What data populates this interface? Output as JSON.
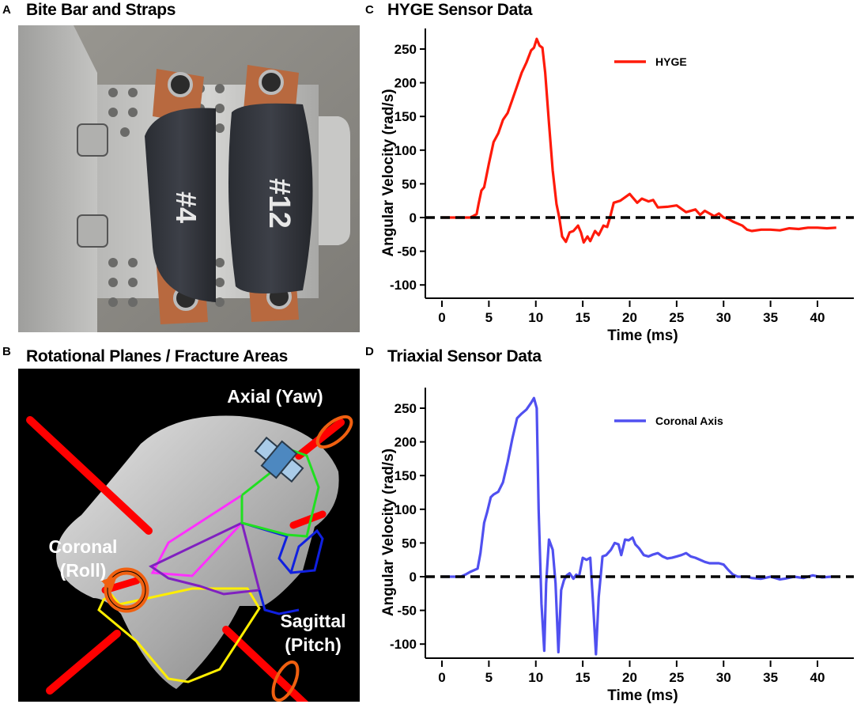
{
  "panels": {
    "A": {
      "letter": "A",
      "title": "Bite Bar and Straps",
      "strap_labels": [
        "#4",
        "#12"
      ]
    },
    "B": {
      "letter": "B",
      "title": "Rotational Planes / Fracture Areas",
      "labels": {
        "axial": "Axial (Yaw)",
        "coronal_1": "Coronal",
        "coronal_2": "(Roll)",
        "sagittal_1": "Sagittal",
        "sagittal_2": "(Pitch)"
      }
    },
    "C": {
      "letter": "C",
      "title": "HYGE Sensor Data"
    },
    "D": {
      "letter": "D",
      "title": "Triaxial Sensor Data"
    }
  },
  "colors": {
    "hyge": "#ff1a0a",
    "coronal": "#5050f0",
    "axis": "#000000",
    "zero_line": "#000000",
    "rod": "#ff0000",
    "ring": "#f06010",
    "yellow": "#ffee00",
    "magenta": "#ff30ff",
    "purple": "#8020c0",
    "blue": "#1020e0",
    "green": "#20e020"
  },
  "chart_data": [
    {
      "type": "line",
      "title": "HYGE Sensor Data",
      "xlabel": "Time (ms)",
      "ylabel": "Angular Velocity (rad/s)",
      "xlim": [
        -0.5,
        42
      ],
      "ylim": [
        -120,
        275
      ],
      "xticks": [
        0,
        5,
        10,
        15,
        20,
        25,
        30,
        35,
        40
      ],
      "yticks": [
        250,
        200,
        150,
        100,
        50,
        0,
        -50,
        -100
      ],
      "grid": false,
      "legend_position": "upper right",
      "reference_line": {
        "y": 0,
        "style": "dashed"
      },
      "series": [
        {
          "name": "HYGE",
          "x": [
            0,
            1,
            2,
            3,
            3.3,
            3.7,
            3.9,
            4.2,
            4.5,
            5,
            5.5,
            6,
            6.5,
            7,
            7.5,
            8,
            8.5,
            9,
            9.5,
            9.8,
            10.1,
            10.4,
            10.7,
            11,
            11.4,
            11.8,
            12.2,
            12.5,
            12.8,
            13.2,
            13.6,
            14,
            14.5,
            14.8,
            15.1,
            15.5,
            15.8,
            16.3,
            16.7,
            17.2,
            17.6,
            17.9,
            18.3,
            19,
            19.5,
            20,
            20.3,
            20.8,
            21.3,
            22,
            22.5,
            23,
            24,
            25,
            26,
            27,
            27.5,
            28,
            29,
            29.5,
            30,
            30.5,
            31,
            32,
            32.5,
            33,
            34,
            35,
            36,
            37,
            38,
            39,
            40,
            41,
            42
          ],
          "y": [
            0,
            0,
            0,
            0,
            2,
            5,
            20,
            40,
            45,
            80,
            112,
            125,
            145,
            155,
            175,
            195,
            215,
            230,
            248,
            252,
            265,
            255,
            252,
            215,
            140,
            70,
            20,
            0,
            -28,
            -36,
            -22,
            -20,
            -12,
            -22,
            -37,
            -28,
            -35,
            -20,
            -26,
            -12,
            -14,
            0,
            22,
            25,
            30,
            35,
            30,
            22,
            28,
            24,
            26,
            15,
            16,
            18,
            8,
            12,
            4,
            10,
            2,
            6,
            0,
            -2,
            -6,
            -12,
            -18,
            -20,
            -18,
            -18,
            -19,
            -16,
            -17,
            -15,
            -15,
            -16,
            -15
          ]
        }
      ]
    },
    {
      "type": "line",
      "title": "Triaxial Sensor Data",
      "xlabel": "Time (ms)",
      "ylabel": "Angular Velocity (rad/s)",
      "xlim": [
        -0.5,
        42
      ],
      "ylim": [
        -120,
        265
      ],
      "xticks": [
        0,
        5,
        10,
        15,
        20,
        25,
        30,
        35,
        40
      ],
      "yticks": [
        250,
        200,
        150,
        100,
        50,
        0,
        -50,
        -100
      ],
      "grid": false,
      "legend_position": "upper right",
      "reference_line": {
        "y": 0,
        "style": "dashed"
      },
      "series": [
        {
          "name": "Coronal Axis",
          "x": [
            0,
            1,
            2,
            2.5,
            3,
            3.8,
            4.1,
            4.5,
            4.8,
            5.2,
            5.5,
            6,
            6.5,
            7,
            7.5,
            8,
            8.5,
            9,
            9.5,
            9.8,
            10.1,
            10.3,
            10.6,
            10.9,
            11.1,
            11.4,
            11.8,
            12.1,
            12.4,
            12.7,
            13,
            13.3,
            13.6,
            14,
            14.3,
            14.6,
            15,
            15.4,
            15.8,
            16.1,
            16.4,
            16.7,
            17.1,
            17.5,
            18,
            18.4,
            18.8,
            19.1,
            19.5,
            19.9,
            20.3,
            20.6,
            21,
            21.5,
            22,
            22.5,
            23,
            23.5,
            24,
            24.5,
            25,
            25.5,
            26,
            26.5,
            27,
            28,
            28.5,
            29,
            29.5,
            30,
            30.5,
            31,
            31.5,
            32.5,
            33,
            34,
            35,
            36,
            36.5,
            37.5,
            38.5,
            39.5,
            40.5,
            41.5
          ],
          "y": [
            0,
            0,
            0,
            3,
            7,
            12,
            35,
            80,
            95,
            118,
            122,
            126,
            140,
            170,
            205,
            235,
            242,
            248,
            258,
            265,
            250,
            100,
            -40,
            -110,
            -10,
            55,
            40,
            -10,
            -112,
            -20,
            -5,
            2,
            5,
            -3,
            3,
            0,
            28,
            25,
            28,
            -40,
            -115,
            -30,
            30,
            32,
            40,
            50,
            48,
            32,
            55,
            54,
            58,
            48,
            42,
            32,
            30,
            33,
            35,
            30,
            27,
            28,
            30,
            32,
            35,
            30,
            28,
            22,
            20,
            20,
            20,
            18,
            10,
            3,
            0,
            0,
            -2,
            -3,
            0,
            -4,
            -3,
            0,
            -2,
            2,
            -1,
            0
          ]
        }
      ]
    }
  ]
}
